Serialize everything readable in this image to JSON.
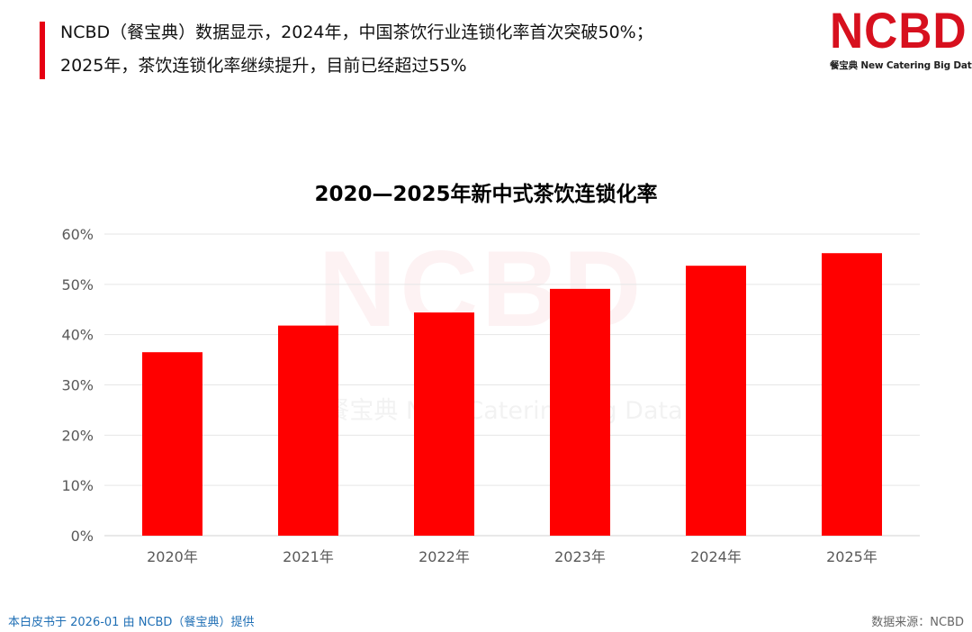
{
  "headline": {
    "line1": "NCBD（餐宝典）数据显示，2024年，中国茶饮行业连锁化率首次突破50%；",
    "line2": "2025年，茶饮连锁化率继续提升，目前已经超过55%"
  },
  "logo": {
    "mark": "NCBD",
    "subtitle": "餐宝典 New Catering Big Data"
  },
  "watermark": {
    "mark": "NCBD",
    "subtitle": "餐宝典 New Catering Big Data"
  },
  "footer": {
    "left": "本白皮书于 2026-01 由 NCBD（餐宝典）提供",
    "right": "数据来源：NCBD"
  },
  "colors": {
    "accent": "#e60012",
    "bar": "#ff0000",
    "brand": "#d7101e",
    "footer_link": "#1f6fb5"
  },
  "chart_data": {
    "type": "bar",
    "title": "2020—2025年新中式茶饮连锁化率",
    "categories": [
      "2020年",
      "2021年",
      "2022年",
      "2023年",
      "2024年",
      "2025年"
    ],
    "values": [
      36.5,
      41.8,
      44.4,
      49.1,
      53.7,
      56.2
    ],
    "y_unit": "%",
    "ylim": [
      0,
      60
    ],
    "y_ticks": [
      0,
      10,
      20,
      30,
      40,
      50,
      60
    ],
    "y_tick_labels": [
      "0%",
      "10%",
      "20%",
      "30%",
      "40%",
      "50%",
      "60%"
    ],
    "xlabel": "",
    "ylabel": "",
    "grid": true,
    "legend": "none"
  }
}
